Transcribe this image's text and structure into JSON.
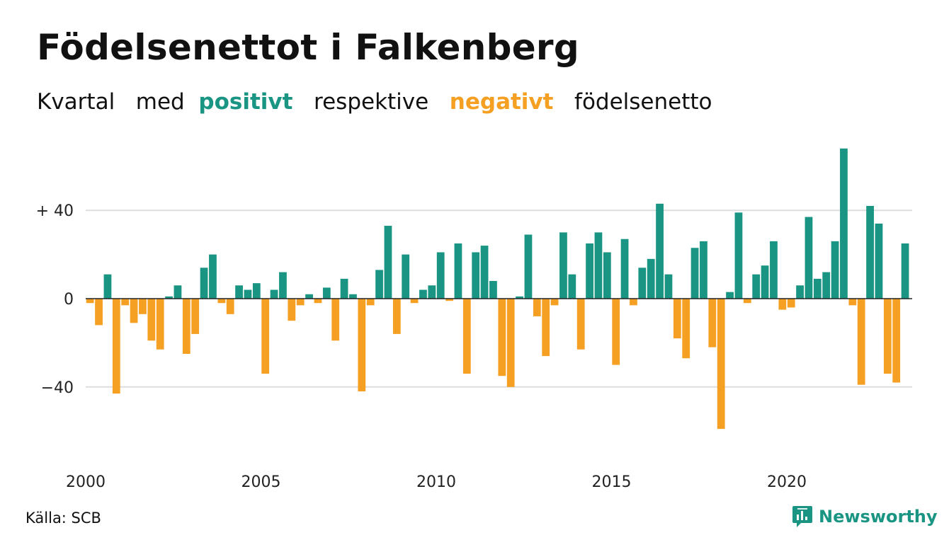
{
  "header": {
    "title": "Födelsenettot i Falkenberg",
    "subtitle_parts": [
      "Kvartal",
      "med",
      "positivt",
      "respektive",
      "negativt",
      "födelsenetto"
    ]
  },
  "footer": {
    "source": "Källa: SCB",
    "brand": "Newsworthy"
  },
  "colors": {
    "positive": "#1a9583",
    "negative": "#f5a023",
    "grid": "#dddddd",
    "zero_line": "#222222"
  },
  "chart_data": {
    "type": "bar",
    "x_start": 2000.0,
    "x_step": 0.25,
    "x_ticks": [
      2000,
      2005,
      2010,
      2015,
      2020
    ],
    "x_tick_labels": [
      "2000",
      "2005",
      "2010",
      "2015",
      "2020"
    ],
    "y_ticks": [
      -40,
      0,
      40
    ],
    "y_tick_labels": [
      "−40",
      "0",
      "+ 40"
    ],
    "ylim": [
      -62,
      72
    ],
    "grid": true,
    "values": [
      -2,
      -12,
      11,
      -43,
      -3,
      -11,
      -7,
      -19,
      -23,
      1,
      6,
      -25,
      -16,
      14,
      20,
      -2,
      -7,
      6,
      4,
      7,
      -34,
      4,
      12,
      -10,
      -3,
      2,
      -2,
      5,
      -19,
      9,
      2,
      -42,
      -3,
      13,
      33,
      -16,
      20,
      -2,
      4,
      6,
      21,
      -1,
      25,
      -34,
      21,
      24,
      8,
      -35,
      -40,
      1,
      29,
      -8,
      -26,
      -3,
      30,
      11,
      -23,
      25,
      30,
      21,
      -30,
      27,
      -3,
      14,
      18,
      43,
      11,
      -18,
      -27,
      23,
      26,
      -22,
      -59,
      3,
      39,
      -2,
      11,
      15,
      26,
      -5,
      -4,
      6,
      37,
      9,
      12,
      26,
      68,
      -3,
      -39,
      42,
      34,
      -34,
      -38,
      25
    ]
  }
}
